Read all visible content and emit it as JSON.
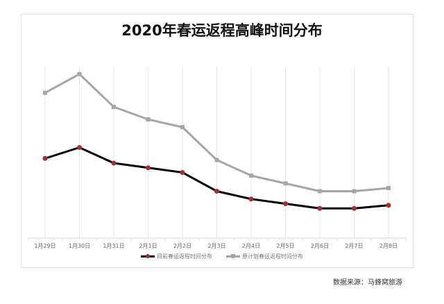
{
  "chart_data": {
    "type": "line",
    "title": "2020年春运返程高峰时间分布",
    "xlabel": "",
    "ylabel": "",
    "categories": [
      "1月29日",
      "1月30日",
      "1月31日",
      "2月1日",
      "2月2日",
      "2月3日",
      "2月4日",
      "2月5日",
      "2月6日",
      "2月7日",
      "2月8日"
    ],
    "series": [
      {
        "name": "目前春运返程时间分布",
        "color": "#000000",
        "marker_color": "#a33030",
        "marker": "circle",
        "values": [
          51,
          58,
          48,
          45,
          42,
          30,
          25,
          22,
          19,
          19,
          21
        ]
      },
      {
        "name": "原计划春运返程时间分布",
        "color": "#a6a6a6",
        "marker_color": "#a6a6a6",
        "marker": "square",
        "values": [
          93,
          105,
          84,
          76,
          71,
          50,
          40,
          35,
          30,
          30,
          32
        ]
      }
    ],
    "y_axis_visible": false,
    "grid": "vertical category lines only",
    "legend_position": "bottom",
    "note": "Y axis unlabeled; values are relative estimates from pixel heights"
  },
  "header": {
    "title": "2020年春运返程高峰时间分布"
  },
  "legend": {
    "current_label": "目前春运返程时间分布",
    "planned_label": "原计划春运返程时间分布"
  },
  "footer": {
    "source": "数据来源：马蜂窝旅游"
  }
}
